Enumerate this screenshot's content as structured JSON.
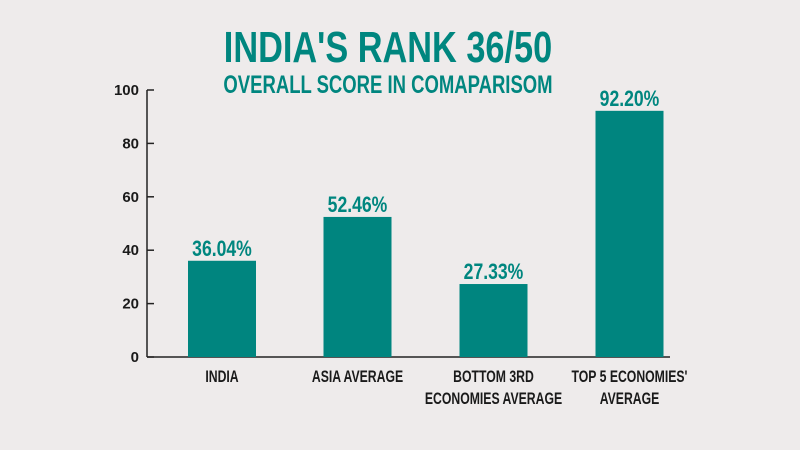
{
  "chart_data": {
    "type": "bar",
    "title": "INDIA'S RANK 36/50",
    "subtitle": "OVERALL SCORE IN COMAPARISOM",
    "categories": [
      [
        "INDIA"
      ],
      [
        "ASIA AVERAGE"
      ],
      [
        "BOTTOM 3RD",
        "ECONOMIES AVERAGE"
      ],
      [
        "TOP 5 ECONOMIES'",
        "AVERAGE"
      ]
    ],
    "values": [
      36.04,
      52.46,
      27.33,
      92.2
    ],
    "data_labels": [
      "36.04%",
      "52.46%",
      "27.33%",
      "92.20%"
    ],
    "yticks": [
      "0",
      "20",
      "40",
      "60",
      "80",
      "100"
    ],
    "ylim": [
      0,
      100
    ],
    "xlabel": "",
    "ylabel": "",
    "bar_color": "#00857f",
    "grid": false
  }
}
